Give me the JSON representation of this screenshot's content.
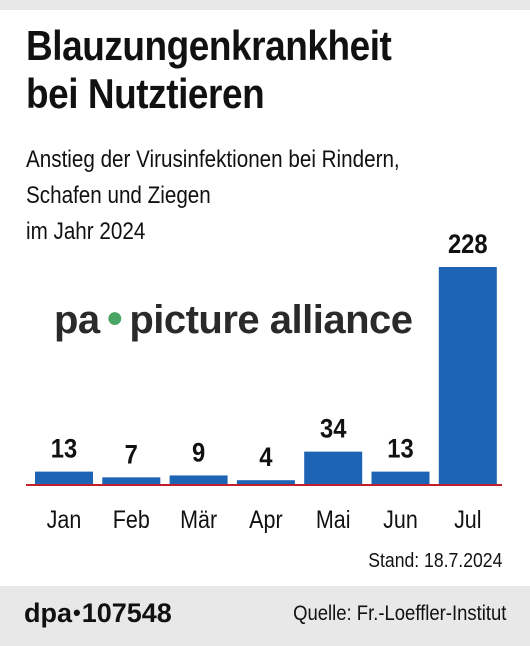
{
  "title_line1": "Blauzungenkrankheit",
  "title_line2": "bei Nutztieren",
  "subtitle_line1": "Anstieg der Virusinfektionen bei Rindern,",
  "subtitle_line2": "Schafen und Ziegen",
  "subtitle_line3": "im Jahr 2024",
  "watermark": {
    "left": "pa",
    "right": "picture alliance"
  },
  "stand": "Stand: 18.7.2024",
  "footer": {
    "agency": "dpa",
    "number": "107548",
    "source": "Quelle: Fr.-Loeffler-Institut"
  },
  "colors": {
    "bar": "#1e64b4",
    "baseline": "#c0202c",
    "background": "#e8e8e8"
  },
  "chart_data": {
    "type": "bar",
    "categories": [
      "Jan",
      "Feb",
      "Mär",
      "Apr",
      "Mai",
      "Jun",
      "Jul"
    ],
    "values": [
      13,
      7,
      9,
      4,
      34,
      13,
      228
    ],
    "ylim": [
      0,
      228
    ],
    "grid": false
  }
}
